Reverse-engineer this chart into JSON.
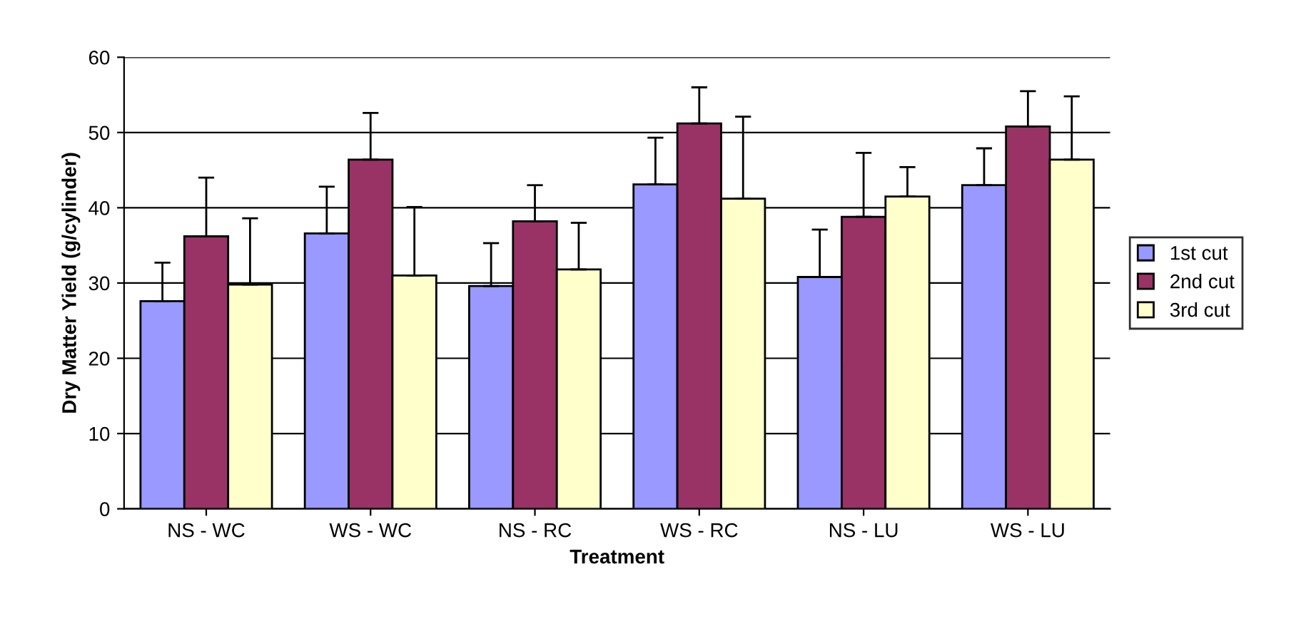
{
  "chart_data": {
    "type": "bar",
    "xlabel": "Treatment",
    "ylabel": "Dry Matter Yield (g/cylinder)",
    "categories": [
      "NS - WC",
      "WS - WC",
      "NS - RC",
      "WS - RC",
      "NS - LU",
      "WS - LU"
    ],
    "series": [
      {
        "name": "1st cut",
        "color": "#9999ff",
        "values": [
          27.6,
          36.6,
          29.6,
          43.1,
          30.8,
          43.0
        ],
        "errors": [
          [
            27.6,
            32.7
          ],
          [
            36.6,
            42.8
          ],
          [
            29.6,
            35.3
          ],
          [
            43.1,
            49.3
          ],
          [
            30.8,
            37.1
          ],
          [
            43.0,
            47.9
          ]
        ]
      },
      {
        "name": "2nd cut",
        "color": "#993366",
        "values": [
          36.2,
          46.4,
          38.2,
          51.2,
          38.8,
          50.8
        ],
        "errors": [
          [
            36.2,
            44.0
          ],
          [
            46.4,
            52.6
          ],
          [
            38.2,
            43.0
          ],
          [
            51.2,
            56.0
          ],
          [
            38.8,
            47.3
          ],
          [
            50.8,
            55.5
          ]
        ]
      },
      {
        "name": "3rd cut",
        "color": "#ffffcc",
        "values": [
          29.8,
          31.0,
          31.8,
          41.2,
          41.5,
          46.4
        ],
        "errors": [
          [
            29.8,
            38.6
          ],
          [
            31.0,
            40.1
          ],
          [
            31.8,
            38.0
          ],
          [
            41.2,
            52.1
          ],
          [
            41.5,
            45.4
          ],
          [
            46.4,
            54.8
          ]
        ]
      }
    ],
    "ylim": [
      0,
      60
    ],
    "yticks": [
      0,
      10,
      20,
      30,
      40,
      50,
      60
    ],
    "grid": "y",
    "legend": "right"
  }
}
